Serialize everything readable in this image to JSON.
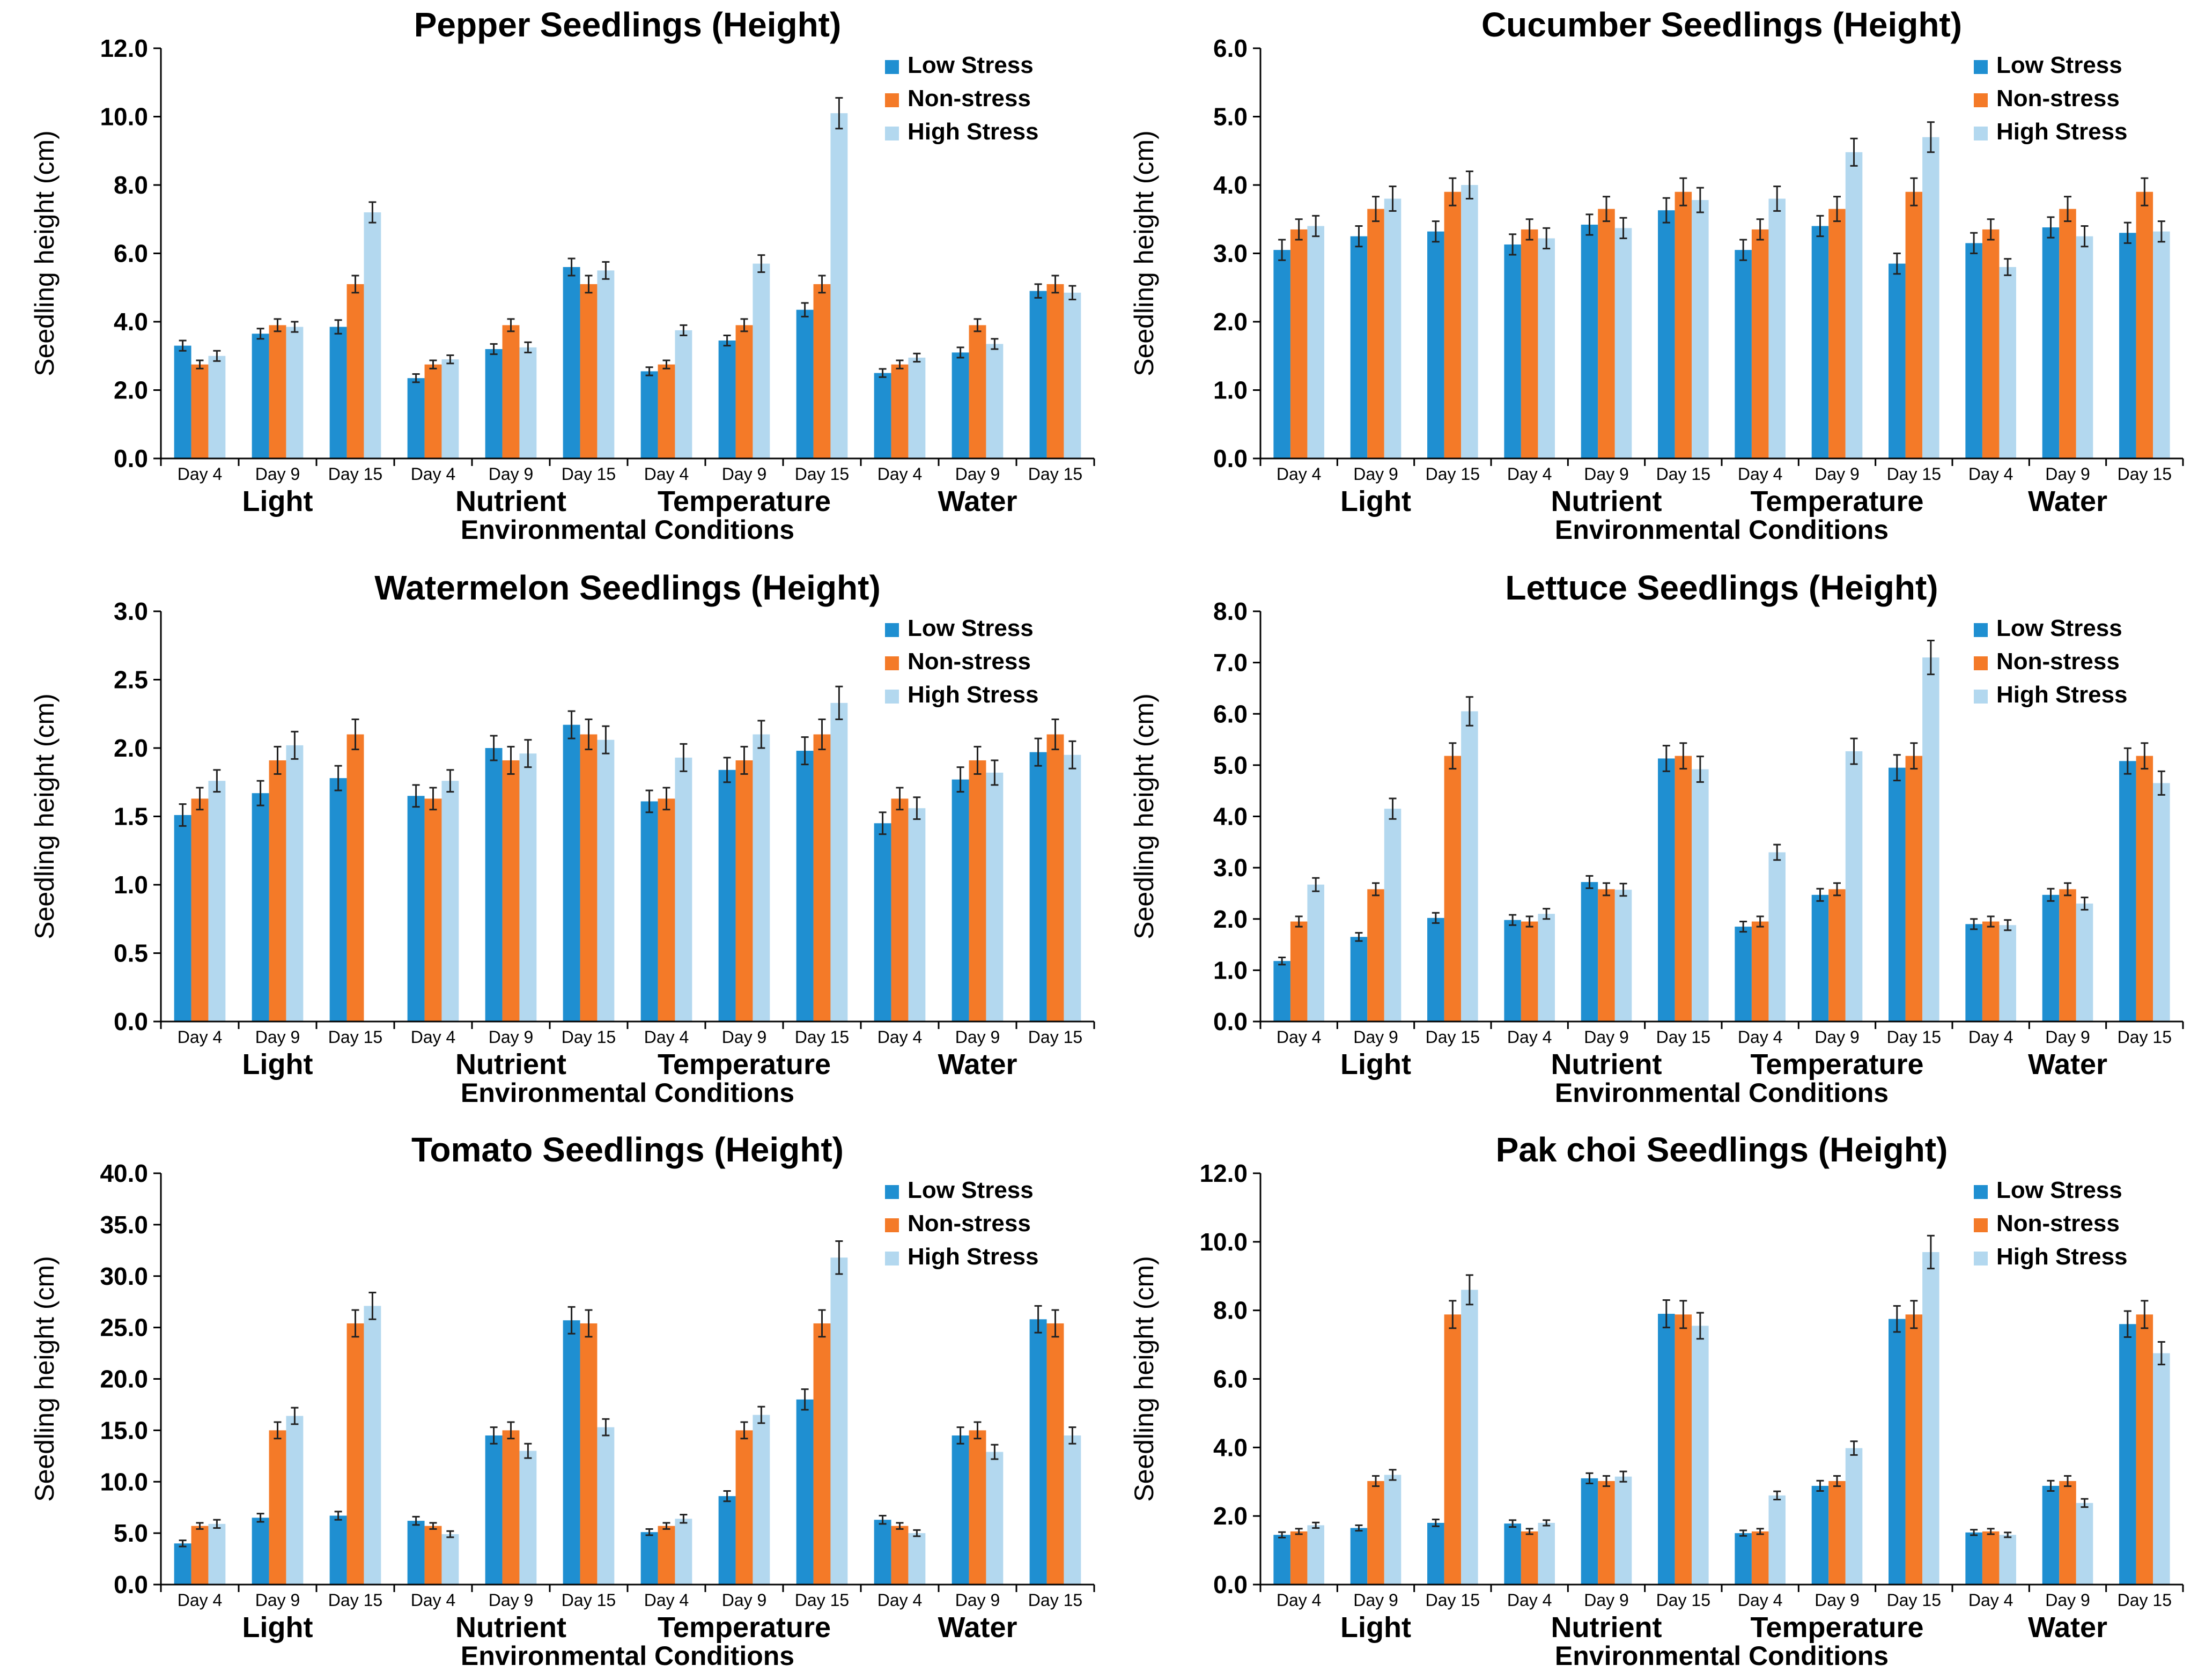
{
  "colors": {
    "low_stress": "#1f8fd1",
    "non_stress": "#f47a28",
    "high_stress": "#b3d8ef",
    "axis": "#000000"
  },
  "chart_data": [
    {
      "type": "bar",
      "title": "Pepper Seedlings (Height)",
      "ylabel": "Seedling height (cm)",
      "xlabel": "Environmental Conditions",
      "ylim": [
        0,
        12
      ],
      "yticks": [
        "0.0",
        "2.0",
        "4.0",
        "6.0",
        "8.0",
        "10.0",
        "12.0"
      ],
      "groups": [
        "Light",
        "Nutrient",
        "Temperature",
        "Water"
      ],
      "categories": [
        "Day 4",
        "Day 9",
        "Day 15",
        "Day 4",
        "Day 9",
        "Day 15",
        "Day 4",
        "Day 9",
        "Day 15",
        "Day 4",
        "Day 9",
        "Day 15"
      ],
      "series": [
        {
          "name": "Low Stress",
          "values": [
            3.3,
            3.65,
            3.85,
            2.35,
            3.2,
            5.6,
            2.55,
            3.45,
            4.35,
            2.5,
            3.1,
            4.9
          ],
          "errors": [
            0.15,
            0.15,
            0.2,
            0.12,
            0.15,
            0.25,
            0.12,
            0.15,
            0.2,
            0.12,
            0.15,
            0.2
          ]
        },
        {
          "name": "Non-stress",
          "values": [
            2.75,
            3.9,
            5.1,
            2.75,
            3.9,
            5.1,
            2.75,
            3.9,
            5.1,
            2.75,
            3.9,
            5.1
          ],
          "errors": [
            0.12,
            0.18,
            0.25,
            0.12,
            0.18,
            0.25,
            0.12,
            0.18,
            0.25,
            0.12,
            0.18,
            0.25
          ]
        },
        {
          "name": "High Stress",
          "values": [
            3.0,
            3.85,
            7.2,
            2.9,
            3.25,
            5.5,
            3.75,
            5.7,
            10.1,
            2.95,
            3.35,
            4.85
          ],
          "errors": [
            0.15,
            0.15,
            0.3,
            0.12,
            0.15,
            0.25,
            0.15,
            0.25,
            0.45,
            0.12,
            0.15,
            0.2
          ]
        }
      ],
      "legend": [
        "Low Stress",
        "Non-stress",
        "High Stress"
      ],
      "legend_position": "top-right"
    },
    {
      "type": "bar",
      "title": "Cucumber Seedlings (Height)",
      "ylabel": "Seedling height (cm)",
      "xlabel": "Environmental Conditions",
      "ylim": [
        0,
        6
      ],
      "yticks": [
        "0.0",
        "1.0",
        "2.0",
        "3.0",
        "4.0",
        "5.0",
        "6.0"
      ],
      "groups": [
        "Light",
        "Nutrient",
        "Temperature",
        "Water"
      ],
      "categories": [
        "Day 4",
        "Day 9",
        "Day 15",
        "Day 4",
        "Day 9",
        "Day 15",
        "Day 4",
        "Day 9",
        "Day 15",
        "Day 4",
        "Day 9",
        "Day 15"
      ],
      "series": [
        {
          "name": "Low Stress",
          "values": [
            3.05,
            3.25,
            3.32,
            3.13,
            3.42,
            3.63,
            3.05,
            3.4,
            2.85,
            3.15,
            3.38,
            3.3
          ],
          "errors": [
            0.15,
            0.15,
            0.15,
            0.15,
            0.15,
            0.18,
            0.15,
            0.15,
            0.15,
            0.15,
            0.15,
            0.15
          ]
        },
        {
          "name": "Non-stress",
          "values": [
            3.35,
            3.65,
            3.9,
            3.35,
            3.65,
            3.9,
            3.35,
            3.65,
            3.9,
            3.35,
            3.65,
            3.9
          ],
          "errors": [
            0.15,
            0.18,
            0.2,
            0.15,
            0.18,
            0.2,
            0.15,
            0.18,
            0.2,
            0.15,
            0.18,
            0.2
          ]
        },
        {
          "name": "High Stress",
          "values": [
            3.4,
            3.8,
            4.0,
            3.22,
            3.37,
            3.78,
            3.8,
            4.48,
            4.7,
            2.8,
            3.25,
            3.32
          ],
          "errors": [
            0.15,
            0.18,
            0.2,
            0.15,
            0.15,
            0.18,
            0.18,
            0.2,
            0.22,
            0.12,
            0.15,
            0.15
          ]
        }
      ],
      "legend": [
        "Low Stress",
        "Non-stress",
        "High Stress"
      ],
      "legend_position": "top-right"
    },
    {
      "type": "bar",
      "title": "Watermelon Seedlings (Height)",
      "ylabel": "Seedling height (cm)",
      "xlabel": "Environmental Conditions",
      "ylim": [
        0,
        3
      ],
      "yticks": [
        "0.0",
        "0.5",
        "1.0",
        "1.5",
        "2.0",
        "2.5",
        "3.0"
      ],
      "groups": [
        "Light",
        "Nutrient",
        "Temperature",
        "Water"
      ],
      "categories": [
        "Day 4",
        "Day 9",
        "Day 15",
        "Day 4",
        "Day 9",
        "Day 15",
        "Day 4",
        "Day 9",
        "Day 15",
        "Day 4",
        "Day 9",
        "Day 15"
      ],
      "series": [
        {
          "name": "Low Stress",
          "values": [
            1.51,
            1.67,
            1.78,
            1.65,
            2.0,
            2.17,
            1.61,
            1.84,
            1.98,
            1.45,
            1.77,
            1.97
          ],
          "errors": [
            0.08,
            0.09,
            0.09,
            0.08,
            0.09,
            0.1,
            0.08,
            0.09,
            0.1,
            0.08,
            0.09,
            0.1
          ]
        },
        {
          "name": "Non-stress",
          "values": [
            1.63,
            1.91,
            2.1,
            1.63,
            1.91,
            2.1,
            1.63,
            1.91,
            2.1,
            1.63,
            1.91,
            2.1
          ],
          "errors": [
            0.08,
            0.1,
            0.11,
            0.08,
            0.1,
            0.11,
            0.08,
            0.1,
            0.11,
            0.08,
            0.1,
            0.11
          ]
        },
        {
          "name": "High Stress",
          "values": [
            1.76,
            2.02,
            0.0,
            1.76,
            1.96,
            2.06,
            1.93,
            2.1,
            2.33,
            1.56,
            1.82,
            1.95
          ],
          "errors": [
            0.08,
            0.1,
            0.0,
            0.08,
            0.1,
            0.1,
            0.1,
            0.1,
            0.12,
            0.08,
            0.09,
            0.1
          ]
        }
      ],
      "legend": [
        "Low Stress",
        "Non-stress",
        "High Stress"
      ],
      "legend_position": "top-right"
    },
    {
      "type": "bar",
      "title": "Lettuce Seedlings (Height)",
      "ylabel": "Seedling height (cm)",
      "xlabel": "Environmental Conditions",
      "ylim": [
        0,
        8
      ],
      "yticks": [
        "0.0",
        "1.0",
        "2.0",
        "3.0",
        "4.0",
        "5.0",
        "6.0",
        "7.0",
        "8.0"
      ],
      "groups": [
        "Light",
        "Nutrient",
        "Temperature",
        "Water"
      ],
      "categories": [
        "Day 4",
        "Day 9",
        "Day 15",
        "Day 4",
        "Day 9",
        "Day 15",
        "Day 4",
        "Day 9",
        "Day 15",
        "Day 4",
        "Day 9",
        "Day 15"
      ],
      "series": [
        {
          "name": "Low Stress",
          "values": [
            1.18,
            1.65,
            2.02,
            1.98,
            2.72,
            5.13,
            1.85,
            2.47,
            4.95,
            1.9,
            2.47,
            5.08
          ],
          "errors": [
            0.07,
            0.08,
            0.1,
            0.1,
            0.12,
            0.25,
            0.1,
            0.12,
            0.25,
            0.1,
            0.12,
            0.25
          ]
        },
        {
          "name": "Non-stress",
          "values": [
            1.95,
            2.58,
            5.18,
            1.95,
            2.58,
            5.18,
            1.95,
            2.58,
            5.18,
            1.95,
            2.58,
            5.18
          ],
          "errors": [
            0.1,
            0.12,
            0.25,
            0.1,
            0.12,
            0.25,
            0.1,
            0.12,
            0.25,
            0.1,
            0.12,
            0.25
          ]
        },
        {
          "name": "High Stress",
          "values": [
            2.67,
            4.15,
            6.05,
            2.1,
            2.57,
            4.92,
            3.3,
            5.27,
            7.1,
            1.88,
            2.3,
            4.65
          ],
          "errors": [
            0.13,
            0.2,
            0.28,
            0.1,
            0.12,
            0.25,
            0.15,
            0.25,
            0.33,
            0.1,
            0.12,
            0.23
          ]
        }
      ],
      "legend": [
        "Low Stress",
        "Non-stress",
        "High Stress"
      ],
      "legend_position": "top-right"
    },
    {
      "type": "bar",
      "title": "Tomato Seedlings (Height)",
      "ylabel": "Seedling height (cm)",
      "xlabel": "Environmental Conditions",
      "ylim": [
        0,
        40
      ],
      "yticks": [
        "0.0",
        "5.0",
        "10.0",
        "15.0",
        "20.0",
        "25.0",
        "30.0",
        "35.0",
        "40.0"
      ],
      "groups": [
        "Light",
        "Nutrient",
        "Temperature",
        "Water"
      ],
      "categories": [
        "Day 4",
        "Day 9",
        "Day 15",
        "Day 4",
        "Day 9",
        "Day 15",
        "Day 4",
        "Day 9",
        "Day 15",
        "Day 4",
        "Day 9",
        "Day 15"
      ],
      "series": [
        {
          "name": "Low Stress",
          "values": [
            4.0,
            6.5,
            6.7,
            6.2,
            14.5,
            25.7,
            5.1,
            8.6,
            18.0,
            6.3,
            14.5,
            25.8
          ],
          "errors": [
            0.3,
            0.4,
            0.4,
            0.4,
            0.8,
            1.3,
            0.3,
            0.5,
            1.0,
            0.4,
            0.8,
            1.3
          ]
        },
        {
          "name": "Non-stress",
          "values": [
            5.7,
            15.0,
            25.4,
            5.7,
            15.0,
            25.4,
            5.7,
            15.0,
            25.4,
            5.7,
            15.0,
            25.4
          ],
          "errors": [
            0.3,
            0.8,
            1.3,
            0.3,
            0.8,
            1.3,
            0.3,
            0.8,
            1.3,
            0.3,
            0.8,
            1.3
          ]
        },
        {
          "name": "High Stress",
          "values": [
            5.9,
            16.4,
            27.1,
            4.9,
            13.0,
            15.3,
            6.4,
            16.5,
            31.8,
            5.0,
            12.9,
            14.5
          ],
          "errors": [
            0.4,
            0.8,
            1.3,
            0.3,
            0.7,
            0.8,
            0.4,
            0.8,
            1.6,
            0.3,
            0.7,
            0.8
          ]
        }
      ],
      "legend": [
        "Low Stress",
        "Non-stress",
        "High Stress"
      ],
      "legend_position": "top-right"
    },
    {
      "type": "bar",
      "title": "Pak choi  Seedlings (Height)",
      "ylabel": "Seedling height (cm)",
      "xlabel": "Environmental Conditions",
      "ylim": [
        0,
        12
      ],
      "yticks": [
        "0.0",
        "2.0",
        "4.0",
        "6.0",
        "8.0",
        "10.0",
        "12.0"
      ],
      "groups": [
        "Light",
        "Nutrient",
        "Temperature",
        "Water"
      ],
      "categories": [
        "Day 4",
        "Day 9",
        "Day 15",
        "Day 4",
        "Day 9",
        "Day 15",
        "Day 4",
        "Day 9",
        "Day 15",
        "Day 4",
        "Day 9",
        "Day 15"
      ],
      "series": [
        {
          "name": "Low Stress",
          "values": [
            1.45,
            1.65,
            1.8,
            1.78,
            3.1,
            7.9,
            1.5,
            2.88,
            7.75,
            1.52,
            2.88,
            7.6
          ],
          "errors": [
            0.08,
            0.08,
            0.1,
            0.1,
            0.15,
            0.4,
            0.08,
            0.15,
            0.38,
            0.08,
            0.15,
            0.38
          ]
        },
        {
          "name": "Non-stress",
          "values": [
            1.55,
            3.02,
            7.88,
            1.55,
            3.02,
            7.88,
            1.55,
            3.02,
            7.88,
            1.55,
            3.02,
            7.88
          ],
          "errors": [
            0.08,
            0.15,
            0.4,
            0.08,
            0.15,
            0.4,
            0.08,
            0.15,
            0.4,
            0.08,
            0.15,
            0.4
          ]
        },
        {
          "name": "High Stress",
          "values": [
            1.73,
            3.2,
            8.6,
            1.8,
            3.15,
            7.55,
            2.6,
            3.98,
            9.7,
            1.45,
            2.38,
            6.75
          ],
          "errors": [
            0.08,
            0.15,
            0.43,
            0.08,
            0.15,
            0.38,
            0.12,
            0.2,
            0.48,
            0.07,
            0.12,
            0.33
          ]
        }
      ],
      "legend": [
        "Low Stress",
        "Non-stress",
        "High Stress"
      ],
      "legend_position": "top-right"
    }
  ]
}
